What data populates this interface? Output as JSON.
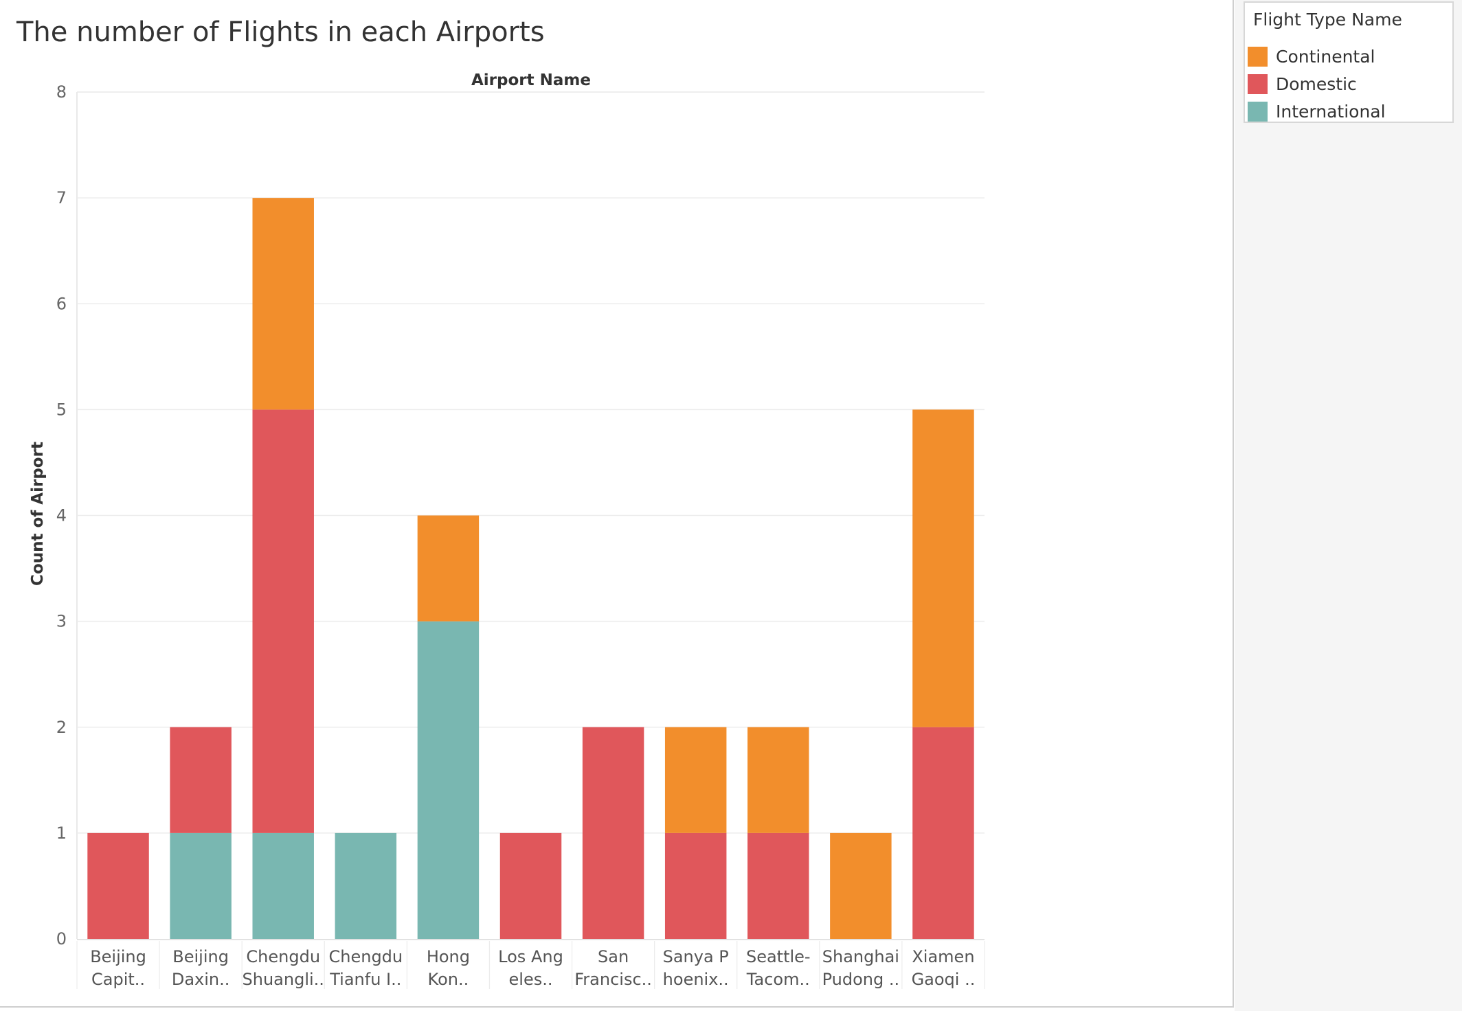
{
  "chart_data": {
    "type": "bar",
    "stacked": true,
    "title": "The number of Flights in each Airports",
    "xlabel": "Airport Name",
    "ylabel": "Count of Airport",
    "ylim": [
      0,
      8
    ],
    "yticks": [
      0,
      1,
      2,
      3,
      4,
      5,
      6,
      7,
      8
    ],
    "grid": true,
    "legend_position": "right",
    "categories": [
      [
        "Beijing",
        "Capit.."
      ],
      [
        "Beijing",
        "Daxin.."
      ],
      [
        "Chengdu",
        "Shuangli.."
      ],
      [
        "Chengdu",
        "Tianfu I.."
      ],
      [
        "Hong",
        "Kon.."
      ],
      [
        "Los Ang",
        "eles.."
      ],
      [
        "San",
        "Francisc.."
      ],
      [
        "Sanya P",
        "hoenix.."
      ],
      [
        "Seattle-",
        "Tacom.."
      ],
      [
        "Shanghai",
        "Pudong .."
      ],
      [
        "Xiamen",
        "Gaoqi .."
      ]
    ],
    "series": [
      {
        "name": "International",
        "color": "#79b7b1",
        "values": [
          0,
          1,
          1,
          1,
          3,
          0,
          0,
          0,
          0,
          0,
          0
        ]
      },
      {
        "name": "Domestic",
        "color": "#e0575b",
        "values": [
          1,
          1,
          4,
          0,
          0,
          1,
          2,
          1,
          1,
          0,
          2
        ]
      },
      {
        "name": "Continental",
        "color": "#f28e2c",
        "values": [
          0,
          0,
          2,
          0,
          1,
          0,
          0,
          1,
          1,
          1,
          3
        ]
      }
    ]
  },
  "legend": {
    "title": "Flight Type Name",
    "items": [
      {
        "label": "Continental",
        "color": "#f28e2c"
      },
      {
        "label": "Domestic",
        "color": "#e0575b"
      },
      {
        "label": "International",
        "color": "#79b7b1"
      }
    ]
  }
}
